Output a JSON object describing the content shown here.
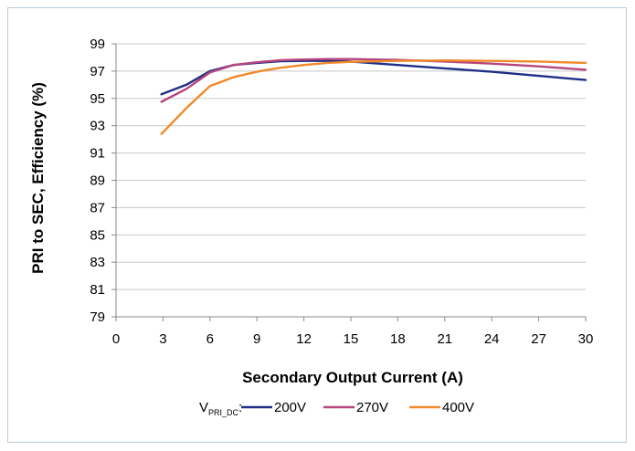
{
  "chart_data": {
    "type": "line",
    "xlabel": "Secondary Output Current (A)",
    "ylabel": "PRI to SEC, Efficiency (%)",
    "xlim": [
      0,
      30
    ],
    "ylim": [
      79,
      99
    ],
    "xticks": [
      "0",
      "3",
      "6",
      "9",
      "12",
      "15",
      "18",
      "21",
      "24",
      "27",
      "30"
    ],
    "yticks": [
      "79",
      "81",
      "83",
      "85",
      "87",
      "89",
      "91",
      "93",
      "95",
      "97",
      "99"
    ],
    "grid": "horizontal",
    "legend": {
      "position": "bottom",
      "prefix_main": "V",
      "prefix_sub": "PRI_DC",
      "prefix_suffix": ":"
    },
    "series": [
      {
        "name": "200V",
        "color": "#1f2f86",
        "x": [
          2.9,
          4.5,
          6,
          7.5,
          9,
          10.5,
          12,
          13.5,
          15,
          18,
          21,
          24,
          27,
          30
        ],
        "y": [
          95.3,
          96.0,
          97.0,
          97.45,
          97.6,
          97.72,
          97.75,
          97.75,
          97.7,
          97.45,
          97.2,
          96.95,
          96.65,
          96.35
        ]
      },
      {
        "name": "270V",
        "color": "#b5467e",
        "x": [
          2.9,
          4.5,
          6,
          7.5,
          9,
          10.5,
          12,
          13.5,
          15,
          18,
          21,
          24,
          27,
          30
        ],
        "y": [
          94.75,
          95.7,
          96.9,
          97.45,
          97.65,
          97.8,
          97.85,
          97.88,
          97.88,
          97.82,
          97.7,
          97.55,
          97.35,
          97.1
        ]
      },
      {
        "name": "400V",
        "color": "#f08a2a",
        "x": [
          2.9,
          4.5,
          6,
          7.5,
          9,
          10.5,
          12,
          13.5,
          15,
          18,
          21,
          24,
          27,
          30
        ],
        "y": [
          92.4,
          94.3,
          95.9,
          96.55,
          96.95,
          97.25,
          97.45,
          97.6,
          97.68,
          97.75,
          97.78,
          97.75,
          97.7,
          97.6
        ]
      }
    ]
  }
}
